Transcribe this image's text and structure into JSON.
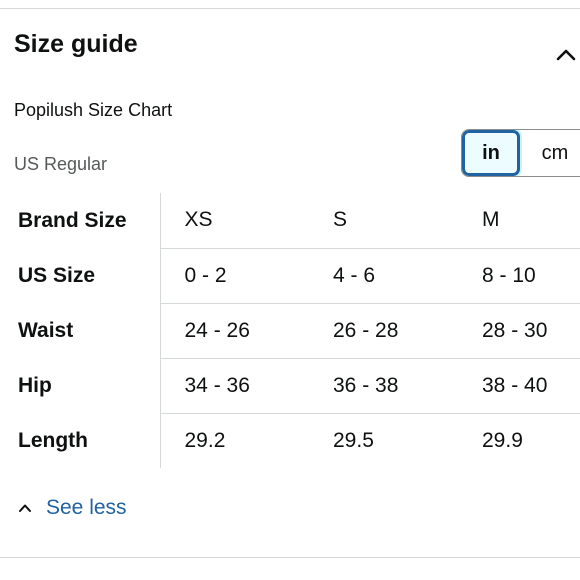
{
  "header": {
    "title": "Size guide",
    "collapse_icon": "chevron-up-icon"
  },
  "chart": {
    "name": "Popilush Size Chart",
    "fit": "US Regular"
  },
  "unit_toggle": {
    "options": [
      "in",
      "cm"
    ],
    "selected": "in",
    "accent": "#2162a1"
  },
  "table": {
    "rows": [
      {
        "label": "Brand Size",
        "values": [
          "XS",
          "S",
          "M"
        ]
      },
      {
        "label": "US Size",
        "values": [
          "0 - 2",
          "4 - 6",
          "8 - 10"
        ]
      },
      {
        "label": "Waist",
        "values": [
          "24 - 26",
          "26 - 28",
          "28 - 30"
        ]
      },
      {
        "label": "Hip",
        "values": [
          "34 - 36",
          "36 - 38",
          "38 - 40"
        ]
      },
      {
        "label": "Length",
        "values": [
          "29.2",
          "29.5",
          "29.9"
        ]
      }
    ]
  },
  "footer": {
    "see_less_label": "See less",
    "see_less_icon": "chevron-up-icon",
    "link_color": "#2162a1"
  }
}
